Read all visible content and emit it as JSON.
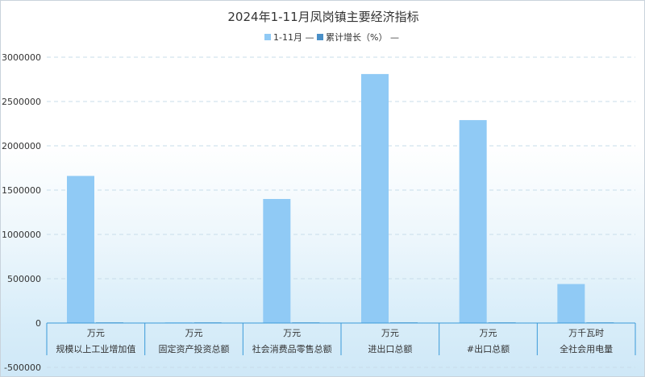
{
  "chart_data": {
    "type": "bar",
    "title": "2024年1-11月凤岗镇主要经济指标",
    "categories": [
      {
        "unit": "万元",
        "name": "规模以上工业增加值"
      },
      {
        "unit": "万元",
        "name": "固定资产投资总额"
      },
      {
        "unit": "万元",
        "name": "社会消费品零售总额"
      },
      {
        "unit": "万元",
        "name": "进出口总额"
      },
      {
        "unit": "万元",
        "name": "#出口总额"
      },
      {
        "unit": "万千瓦时",
        "name": "全社会用电量"
      }
    ],
    "series": [
      {
        "name": "1-11月",
        "color": "#90caf5",
        "values": [
          1660000,
          0,
          1400000,
          2810000,
          2290000,
          440000
        ]
      },
      {
        "name": "累计增长（%）",
        "color": "#4a90c8",
        "values": [
          0,
          0,
          0,
          0,
          0,
          0
        ]
      }
    ],
    "legend_suffix": "—",
    "y_ticks": [
      "3000000",
      "2500000",
      "2000000",
      "1500000",
      "1000000",
      "500000",
      "0",
      "-500000"
    ],
    "ylim": [
      -500000,
      3000000
    ],
    "grid": true,
    "legend_position": "top-center"
  }
}
